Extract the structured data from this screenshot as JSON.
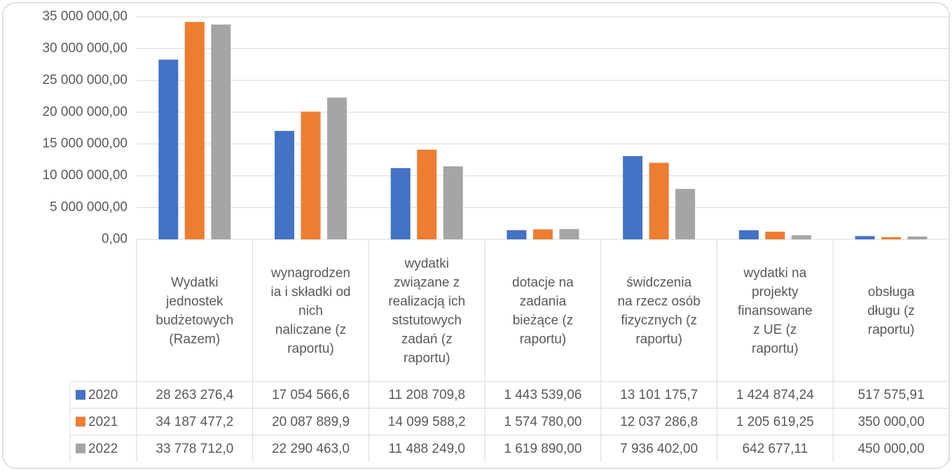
{
  "chart_data": {
    "type": "bar",
    "categories": [
      "Wydatki\njednostek\nbudżetowych\n(Razem)",
      "wynagrodzen\nia i składki od\nnich\nnaliczane (z\nraportu)",
      "wydatki\nzwiązane z\nrealizacją ich\nststutowych\nzadań (z\nraportu)",
      "dotacje na\nzadania\nbieżące (z\nraportu)",
      "świdczenia\nna rzecz osób\nfizycznych (z\nraportu)",
      "wydatki na\nprojekty\nfinansowane\nz UE (z\nraportu)",
      "obsługa\ndługu (z\nraportu)"
    ],
    "series": [
      {
        "name": "2020",
        "color": "#4472c4",
        "values": [
          28263276.4,
          17054566.6,
          11208709.8,
          1443539.06,
          13101175.7,
          1424874.24,
          517575.91
        ],
        "value_labels": [
          "28 263 276,4",
          "17 054 566,6",
          "11 208 709,8",
          "1 443 539,06",
          "13 101 175,7",
          "1 424 874,24",
          "517 575,91"
        ]
      },
      {
        "name": "2021",
        "color": "#ed7d31",
        "values": [
          34187477.2,
          20087889.9,
          14099588.2,
          1574780.0,
          12037286.8,
          1205619.25,
          350000.0
        ],
        "value_labels": [
          "34 187 477,2",
          "20 087 889,9",
          "14 099 588,2",
          "1 574 780,00",
          "12 037 286,8",
          "1 205 619,25",
          "350 000,00"
        ]
      },
      {
        "name": "2022",
        "color": "#a5a5a5",
        "values": [
          33778712.0,
          22290463.0,
          11488249.0,
          1619890.0,
          7936402.0,
          642677.11,
          450000.0
        ],
        "value_labels": [
          "33 778 712,0",
          "22 290 463,0",
          "11 488 249,0",
          "1 619 890,00",
          "7 936 402,00",
          "642 677,11",
          "450 000,00"
        ]
      }
    ],
    "ylim": [
      0,
      35000000
    ],
    "yticks": [
      {
        "value": 0,
        "label": "0,00"
      },
      {
        "value": 5000000,
        "label": "5 000 000,00"
      },
      {
        "value": 10000000,
        "label": "10 000 000,00"
      },
      {
        "value": 15000000,
        "label": "15 000 000,00"
      },
      {
        "value": 20000000,
        "label": "20 000 000,00"
      },
      {
        "value": 25000000,
        "label": "25 000 000,00"
      },
      {
        "value": 30000000,
        "label": "30 000 000,00"
      },
      {
        "value": 35000000,
        "label": "35 000 000,00"
      }
    ],
    "grid": true
  }
}
